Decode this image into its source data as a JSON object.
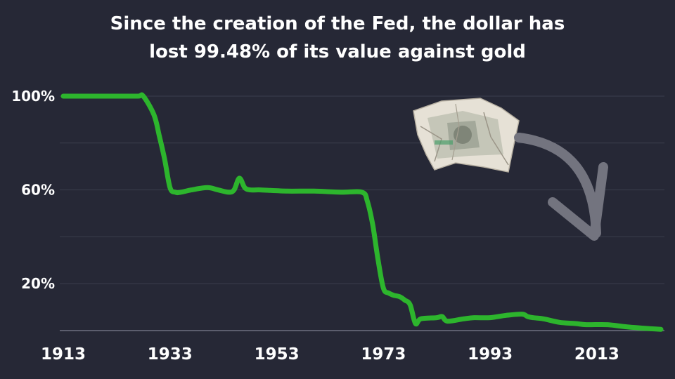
{
  "chart_data": {
    "type": "line",
    "title": "Since the creation of the Fed, the dollar has lost 99.48% of its value against gold",
    "title_lines": [
      "Since the creation of the Fed, the dollar has",
      "lost 99.48% of its value against gold"
    ],
    "xlabel": "",
    "ylabel": "",
    "x_ticks": [
      "1913",
      "1933",
      "1953",
      "1973",
      "1993",
      "2013"
    ],
    "y_ticks": [
      "100%",
      "60%",
      "20%"
    ],
    "xlim": [
      1913,
      2025
    ],
    "ylim": [
      0,
      100
    ],
    "grid": true,
    "line_color": "#2db52d",
    "background": "#262836",
    "series": [
      {
        "x": [
          1913,
          1918,
          1923,
          1927,
          1928,
          1930,
          1931,
          1932,
          1933,
          1934,
          1935,
          1937,
          1940,
          1942,
          1944,
          1945,
          1946,
          1947,
          1948,
          1950,
          1955,
          1960,
          1965,
          1969,
          1970,
          1971,
          1972,
          1973,
          1974,
          1975,
          1976,
          1977,
          1978,
          1979,
          1980,
          1983,
          1984,
          1985,
          1988,
          1990,
          1993,
          1996,
          1999,
          2000,
          2001,
          2003,
          2006,
          2009,
          2011,
          2015,
          2019,
          2025
        ],
        "values": [
          100,
          100,
          100,
          100,
          100,
          92,
          83,
          73,
          61,
          59,
          59,
          60,
          61,
          60,
          59,
          60,
          65,
          61,
          60,
          60,
          59.5,
          59.5,
          59,
          59,
          55,
          45,
          30,
          18,
          16,
          15,
          14.5,
          13,
          11,
          3,
          5,
          5.5,
          6,
          4,
          5,
          5.5,
          5.5,
          6.5,
          7,
          6,
          5.5,
          5,
          3.5,
          3,
          2.5,
          2.5,
          1.5,
          0.5
        ]
      }
    ]
  }
}
